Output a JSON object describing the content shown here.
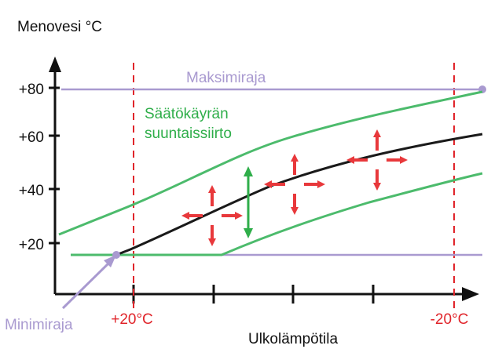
{
  "ylabel": "Menovesi °C",
  "xlabel": "Ulkolämpötila",
  "y_ticks": [
    "+80",
    "+60",
    "+40",
    "+20"
  ],
  "x_ticks": [
    "+20°C",
    "-20°C"
  ],
  "max_limit_label": "Maksimiraja",
  "min_limit_label": "Minimiraja",
  "shift_label_line1": "Säätökäyrän",
  "shift_label_line2": "suuntaissiirto",
  "colors": {
    "curve": "#1a1a1a",
    "shifted_curves": "#4cbb6c",
    "limits": "#a99ad0",
    "arrows": "#e8383b",
    "reference_lines": "#e0242a",
    "axes": "#111111"
  }
}
